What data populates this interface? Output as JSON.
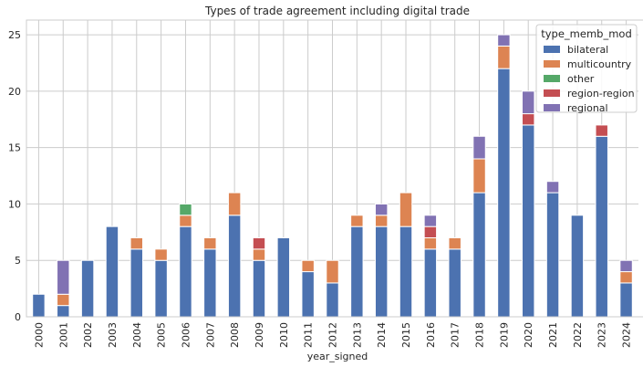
{
  "chart_data": {
    "type": "bar",
    "stacked": true,
    "title": "Types of trade agreement including digital trade",
    "xlabel": "year_signed",
    "ylabel": "",
    "ylim": [
      0,
      26.3
    ],
    "yticks": [
      0,
      5,
      10,
      15,
      20,
      25
    ],
    "grid": true,
    "legend": {
      "title": "type_memb_mod",
      "placement": "top-right"
    },
    "categories": [
      "2000",
      "2001",
      "2002",
      "2003",
      "2004",
      "2005",
      "2006",
      "2007",
      "2008",
      "2009",
      "2010",
      "2011",
      "2012",
      "2013",
      "2014",
      "2015",
      "2016",
      "2017",
      "2018",
      "2019",
      "2020",
      "2021",
      "2022",
      "2023",
      "2024"
    ],
    "series": [
      {
        "name": "bilateral",
        "color": "#4c72b0",
        "values": [
          2,
          1,
          5,
          8,
          6,
          5,
          8,
          6,
          9,
          5,
          7,
          4,
          3,
          8,
          8,
          8,
          6,
          6,
          11,
          22,
          17,
          11,
          9,
          16,
          3
        ]
      },
      {
        "name": "multicountry",
        "color": "#dd8452",
        "values": [
          0,
          1,
          0,
          0,
          1,
          1,
          1,
          1,
          2,
          1,
          0,
          1,
          2,
          1,
          1,
          3,
          1,
          1,
          3,
          2,
          0,
          0,
          0,
          0,
          1
        ]
      },
      {
        "name": "other",
        "color": "#55a868",
        "values": [
          0,
          0,
          0,
          0,
          0,
          0,
          1,
          0,
          0,
          0,
          0,
          0,
          0,
          0,
          0,
          0,
          0,
          0,
          0,
          0,
          0,
          0,
          0,
          0,
          0
        ]
      },
      {
        "name": "region-region",
        "color": "#c44e52",
        "values": [
          0,
          0,
          0,
          0,
          0,
          0,
          0,
          0,
          0,
          1,
          0,
          0,
          0,
          0,
          0,
          0,
          1,
          0,
          0,
          0,
          1,
          0,
          0,
          1,
          0
        ]
      },
      {
        "name": "regional",
        "color": "#8172b3",
        "values": [
          0,
          3,
          0,
          0,
          0,
          0,
          0,
          0,
          0,
          0,
          0,
          0,
          0,
          0,
          1,
          0,
          1,
          0,
          2,
          1,
          2,
          1,
          0,
          0,
          1
        ]
      }
    ]
  }
}
